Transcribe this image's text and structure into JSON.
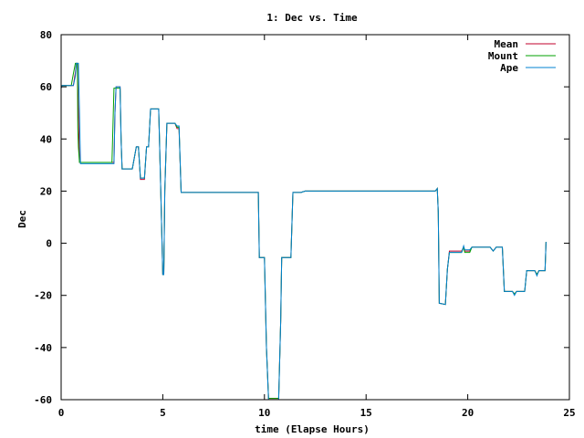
{
  "chart_data": {
    "type": "line",
    "title": "1: Dec vs. Time",
    "xlabel": "time (Elapse Hours)",
    "ylabel": "Dec",
    "xlim": [
      0,
      25
    ],
    "ylim": [
      -60,
      80
    ],
    "xticks": [
      0,
      5,
      10,
      15,
      20,
      25
    ],
    "yticks": [
      -60,
      -40,
      -20,
      0,
      20,
      40,
      60,
      80
    ],
    "grid": false,
    "legend_position": "top-right",
    "series": [
      {
        "name": "Mean",
        "color": "#c0002b",
        "points": [
          [
            0.0,
            59.5
          ],
          [
            0.05,
            60.5
          ],
          [
            0.6,
            60.5
          ],
          [
            0.7,
            65.5
          ],
          [
            0.75,
            69.0
          ],
          [
            0.8,
            69.0
          ],
          [
            0.85,
            50.0
          ],
          [
            0.9,
            31.0
          ],
          [
            2.6,
            31.0
          ],
          [
            2.65,
            50.0
          ],
          [
            2.7,
            60.0
          ],
          [
            2.9,
            60.0
          ],
          [
            2.95,
            40.0
          ],
          [
            3.0,
            28.5
          ],
          [
            3.5,
            28.5
          ],
          [
            3.7,
            37.0
          ],
          [
            3.8,
            37.0
          ],
          [
            3.9,
            24.5
          ],
          [
            4.1,
            24.5
          ],
          [
            4.2,
            37.0
          ],
          [
            4.3,
            37.0
          ],
          [
            4.4,
            51.5
          ],
          [
            4.8,
            51.5
          ],
          [
            4.9,
            20.0
          ],
          [
            5.0,
            -12.0
          ],
          [
            5.05,
            -12.0
          ],
          [
            5.1,
            20.0
          ],
          [
            5.2,
            46.0
          ],
          [
            5.6,
            46.0
          ],
          [
            5.7,
            44.0
          ],
          [
            5.8,
            44.0
          ],
          [
            5.9,
            19.5
          ],
          [
            9.7,
            19.5
          ],
          [
            9.75,
            -5.5
          ],
          [
            10.0,
            -5.5
          ],
          [
            10.1,
            -40.0
          ],
          [
            10.2,
            -59.5
          ],
          [
            10.7,
            -59.5
          ],
          [
            10.8,
            -30.0
          ],
          [
            10.85,
            -5.5
          ],
          [
            11.3,
            -5.5
          ],
          [
            11.4,
            19.5
          ],
          [
            11.8,
            19.5
          ],
          [
            12.0,
            20.0
          ],
          [
            18.4,
            20.0
          ],
          [
            18.5,
            21.0
          ],
          [
            18.55,
            12.0
          ],
          [
            18.6,
            -23.0
          ],
          [
            18.9,
            -23.5
          ],
          [
            19.0,
            -10.0
          ],
          [
            19.1,
            -3.0
          ],
          [
            19.7,
            -3.0
          ],
          [
            19.8,
            -1.5
          ],
          [
            19.85,
            -3.0
          ],
          [
            20.1,
            -3.0
          ],
          [
            20.2,
            -1.5
          ],
          [
            21.1,
            -1.5
          ],
          [
            21.25,
            -3.0
          ],
          [
            21.4,
            -1.5
          ],
          [
            21.7,
            -1.5
          ],
          [
            21.8,
            -18.5
          ],
          [
            22.2,
            -18.5
          ],
          [
            22.3,
            -19.5
          ],
          [
            22.4,
            -18.5
          ],
          [
            22.8,
            -18.5
          ],
          [
            22.9,
            -10.5
          ],
          [
            23.3,
            -10.5
          ],
          [
            23.4,
            -12.0
          ],
          [
            23.5,
            -10.5
          ],
          [
            23.8,
            -10.5
          ],
          [
            23.85,
            0.5
          ]
        ]
      },
      {
        "name": "Mount",
        "color": "#00a000",
        "points": [
          [
            0.0,
            59.5
          ],
          [
            0.05,
            60.5
          ],
          [
            0.5,
            60.5
          ],
          [
            0.6,
            65.0
          ],
          [
            0.7,
            69.0
          ],
          [
            0.8,
            69.0
          ],
          [
            0.82,
            44.0
          ],
          [
            0.85,
            37.0
          ],
          [
            0.9,
            31.0
          ],
          [
            2.5,
            31.0
          ],
          [
            2.55,
            45.0
          ],
          [
            2.6,
            59.5
          ],
          [
            2.9,
            59.5
          ],
          [
            2.95,
            40.0
          ],
          [
            3.0,
            28.5
          ],
          [
            3.5,
            28.5
          ],
          [
            3.7,
            37.0
          ],
          [
            3.8,
            37.0
          ],
          [
            3.9,
            25.0
          ],
          [
            4.1,
            25.0
          ],
          [
            4.2,
            37.0
          ],
          [
            4.3,
            37.0
          ],
          [
            4.4,
            51.5
          ],
          [
            4.8,
            51.5
          ],
          [
            4.9,
            20.0
          ],
          [
            5.0,
            -12.0
          ],
          [
            5.05,
            -12.0
          ],
          [
            5.1,
            20.0
          ],
          [
            5.2,
            46.0
          ],
          [
            5.6,
            46.0
          ],
          [
            5.7,
            44.5
          ],
          [
            5.8,
            44.5
          ],
          [
            5.9,
            19.5
          ],
          [
            9.7,
            19.5
          ],
          [
            9.75,
            -5.5
          ],
          [
            10.0,
            -5.5
          ],
          [
            10.1,
            -40.0
          ],
          [
            10.2,
            -59.5
          ],
          [
            10.7,
            -59.5
          ],
          [
            10.8,
            -30.0
          ],
          [
            10.85,
            -5.5
          ],
          [
            11.3,
            -5.5
          ],
          [
            11.4,
            19.5
          ],
          [
            11.8,
            19.5
          ],
          [
            12.0,
            20.0
          ],
          [
            18.4,
            20.0
          ],
          [
            18.5,
            21.0
          ],
          [
            18.55,
            12.0
          ],
          [
            18.6,
            -23.0
          ],
          [
            18.9,
            -23.5
          ],
          [
            19.0,
            -10.0
          ],
          [
            19.1,
            -3.5
          ],
          [
            19.7,
            -3.5
          ],
          [
            19.8,
            -1.5
          ],
          [
            19.85,
            -3.5
          ],
          [
            20.1,
            -3.5
          ],
          [
            20.2,
            -1.5
          ],
          [
            21.1,
            -1.5
          ],
          [
            21.25,
            -3.0
          ],
          [
            21.4,
            -1.5
          ],
          [
            21.7,
            -1.5
          ],
          [
            21.8,
            -18.5
          ],
          [
            22.2,
            -18.5
          ],
          [
            22.3,
            -19.5
          ],
          [
            22.4,
            -18.5
          ],
          [
            22.8,
            -18.5
          ],
          [
            22.9,
            -10.5
          ],
          [
            23.3,
            -10.5
          ],
          [
            23.4,
            -12.0
          ],
          [
            23.5,
            -10.5
          ],
          [
            23.8,
            -10.5
          ],
          [
            23.85,
            0.5
          ]
        ]
      },
      {
        "name": "Ape",
        "color": "#0080d0",
        "points": [
          [
            0.0,
            59.5
          ],
          [
            0.05,
            60.5
          ],
          [
            0.6,
            60.5
          ],
          [
            0.7,
            64.0
          ],
          [
            0.75,
            69.0
          ],
          [
            0.85,
            69.0
          ],
          [
            0.9,
            50.0
          ],
          [
            0.95,
            30.5
          ],
          [
            2.6,
            30.5
          ],
          [
            2.65,
            50.0
          ],
          [
            2.7,
            60.0
          ],
          [
            2.9,
            60.0
          ],
          [
            2.95,
            40.0
          ],
          [
            3.0,
            28.5
          ],
          [
            3.5,
            28.5
          ],
          [
            3.7,
            37.0
          ],
          [
            3.8,
            37.0
          ],
          [
            3.9,
            25.0
          ],
          [
            4.1,
            25.0
          ],
          [
            4.2,
            37.0
          ],
          [
            4.3,
            37.0
          ],
          [
            4.4,
            51.5
          ],
          [
            4.8,
            51.5
          ],
          [
            4.9,
            20.0
          ],
          [
            5.0,
            -12.0
          ],
          [
            5.05,
            -12.0
          ],
          [
            5.1,
            20.0
          ],
          [
            5.2,
            46.0
          ],
          [
            5.6,
            46.0
          ],
          [
            5.7,
            45.0
          ],
          [
            5.8,
            45.0
          ],
          [
            5.9,
            19.5
          ],
          [
            9.7,
            19.5
          ],
          [
            9.75,
            -5.5
          ],
          [
            10.0,
            -5.5
          ],
          [
            10.1,
            -40.0
          ],
          [
            10.2,
            -60.0
          ],
          [
            10.7,
            -60.0
          ],
          [
            10.8,
            -30.0
          ],
          [
            10.85,
            -5.5
          ],
          [
            11.3,
            -5.5
          ],
          [
            11.4,
            19.5
          ],
          [
            11.8,
            19.5
          ],
          [
            12.0,
            20.0
          ],
          [
            18.4,
            20.0
          ],
          [
            18.5,
            21.0
          ],
          [
            18.55,
            12.0
          ],
          [
            18.6,
            -23.0
          ],
          [
            18.9,
            -23.5
          ],
          [
            19.0,
            -10.0
          ],
          [
            19.1,
            -3.5
          ],
          [
            19.7,
            -3.5
          ],
          [
            19.8,
            -1.0
          ],
          [
            19.85,
            -2.5
          ],
          [
            20.1,
            -2.5
          ],
          [
            20.2,
            -1.5
          ],
          [
            21.1,
            -1.5
          ],
          [
            21.25,
            -3.0
          ],
          [
            21.4,
            -1.5
          ],
          [
            21.7,
            -1.5
          ],
          [
            21.8,
            -18.5
          ],
          [
            22.2,
            -18.5
          ],
          [
            22.3,
            -20.0
          ],
          [
            22.4,
            -18.5
          ],
          [
            22.8,
            -18.5
          ],
          [
            22.9,
            -10.5
          ],
          [
            23.3,
            -10.5
          ],
          [
            23.4,
            -12.5
          ],
          [
            23.5,
            -10.5
          ],
          [
            23.8,
            -10.5
          ],
          [
            23.85,
            0.5
          ]
        ]
      }
    ]
  }
}
